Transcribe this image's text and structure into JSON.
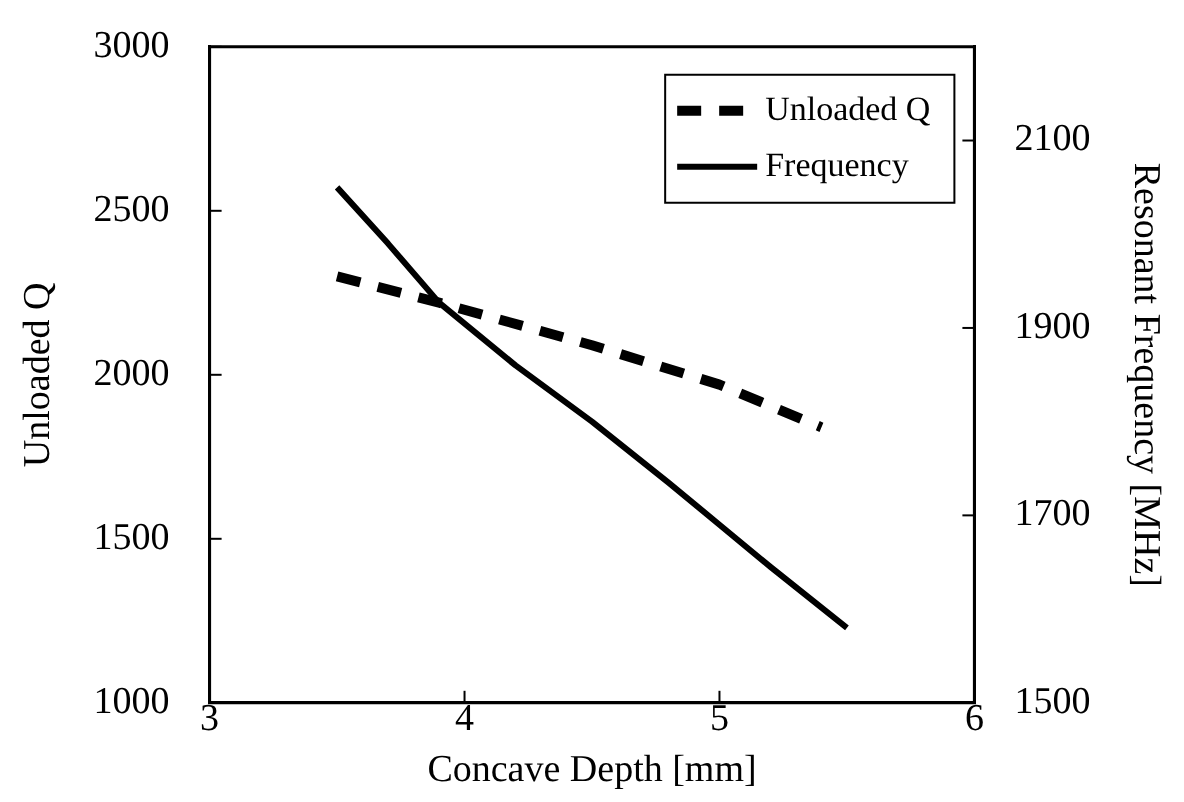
{
  "chart_data": {
    "type": "line",
    "xlabel": "Concave Depth [mm]",
    "ylabel": "Unloaded Q",
    "y2label": "Resonant Frequency [MHz]",
    "xlim": [
      3,
      6
    ],
    "xticks": [
      3,
      4,
      5,
      6
    ],
    "ylim": [
      1000,
      3000
    ],
    "yticks": [
      1000,
      1500,
      2000,
      2500,
      3000
    ],
    "y2lim": [
      1500,
      2200
    ],
    "y2ticks": [
      1500,
      1700,
      1900,
      2100
    ],
    "grid": false,
    "legend": "top right",
    "marker": "none",
    "series": [
      {
        "name": "Unloaded Q",
        "color": "#000000",
        "line_style": "dashed",
        "x": [
          3.5,
          3.9,
          4.5,
          5.0,
          5.4
        ],
        "values": [
          2300,
          2220,
          2090,
          1970,
          1840
        ]
      },
      {
        "name": "Frequency",
        "color": "#000000",
        "line_style": "solid",
        "axis": "y2",
        "x": [
          3.5,
          3.7,
          3.9,
          4.2,
          4.5,
          4.8,
          5.0,
          5.2,
          5.5
        ],
        "values": [
          2050,
          1990,
          1927,
          1860,
          1800,
          1735,
          1690,
          1645,
          1580
        ]
      }
    ]
  }
}
